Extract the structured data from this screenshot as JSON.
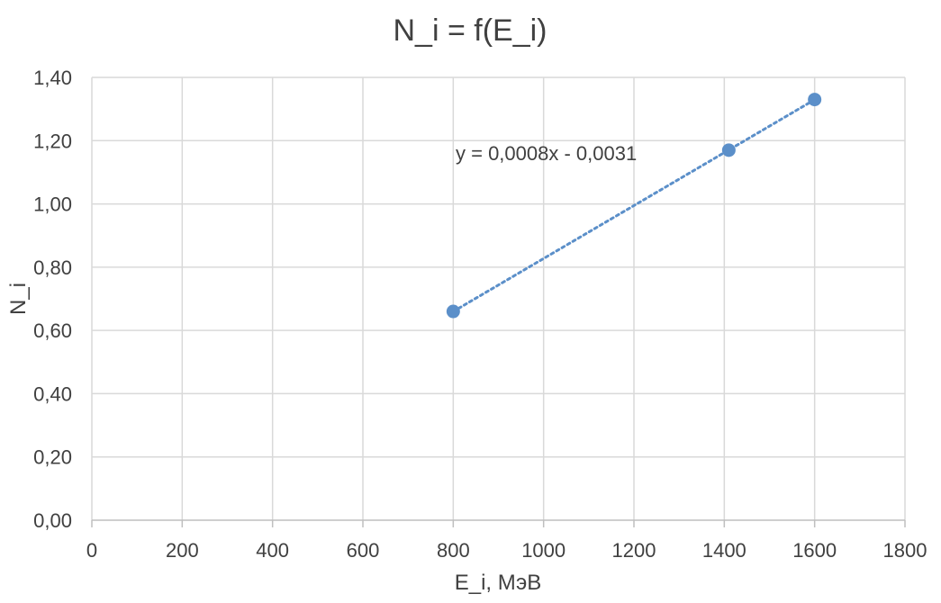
{
  "chart_data": {
    "type": "scatter",
    "title": "N_i = f(E_i)",
    "xlabel": "E_i, МэВ",
    "ylabel": "N_i",
    "xlim": [
      0,
      1800
    ],
    "ylim": [
      0,
      1.4
    ],
    "x_ticks": [
      "0",
      "200",
      "400",
      "600",
      "800",
      "1000",
      "1200",
      "1400",
      "1600",
      "1800"
    ],
    "y_ticks": [
      "0,00",
      "0,20",
      "0,40",
      "0,60",
      "0,80",
      "1,00",
      "1,20",
      "1,40"
    ],
    "grid": true,
    "series": [
      {
        "x": [
          800,
          1410,
          1600
        ],
        "y": [
          0.66,
          1.17,
          1.33
        ],
        "color": "#5B8FC9",
        "marker": "circle"
      }
    ],
    "trendline": {
      "type": "linear",
      "style": "dotted",
      "color": "#5B8FC9",
      "x_range": [
        800,
        1600
      ],
      "equation": "y = 0,0008x - 0,0031"
    }
  }
}
